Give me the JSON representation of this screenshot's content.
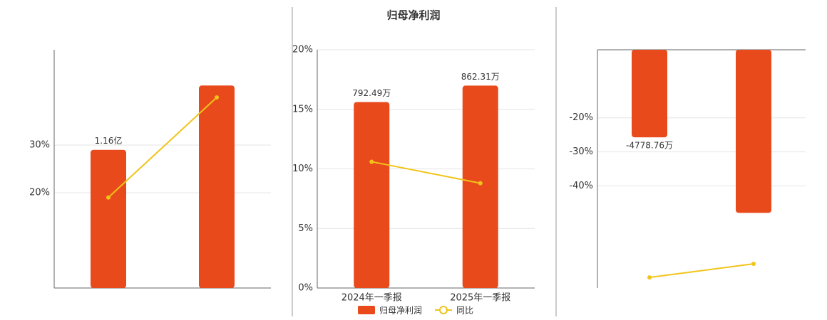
{
  "chart_data": [
    {
      "type": "bar",
      "categories": [
        null,
        null
      ],
      "ylim": [
        0,
        2
      ],
      "y2lim": [
        0,
        50
      ],
      "y2ticks": [
        {
          "value": 20,
          "label": "20%"
        },
        {
          "value": 30,
          "label": "30%"
        }
      ],
      "grid": true,
      "series": [
        {
          "color": "#e84a1c",
          "values": [
            1.16,
            1.7
          ],
          "value_labels": [
            "1.16亿",
            null
          ]
        },
        {
          "type": "line",
          "axis": "y2",
          "color": "#f0c419",
          "values": [
            19,
            40
          ]
        }
      ]
    },
    {
      "type": "bar",
      "title": "归母净利润",
      "categories": [
        "2024年一季报",
        "2025年一季报"
      ],
      "ylim": [
        0,
        1015
      ],
      "y2lim": [
        0,
        20
      ],
      "y2ticks": [
        {
          "value": 0,
          "label": "0%"
        },
        {
          "value": 5,
          "label": "5%"
        },
        {
          "value": 10,
          "label": "10%"
        },
        {
          "value": 15,
          "label": "15%"
        },
        {
          "value": 20,
          "label": "20%"
        }
      ],
      "grid": true,
      "legend": "bottom",
      "series": [
        {
          "name": "归母净利润",
          "color": "#e84a1c",
          "values": [
            792.49,
            862.31
          ],
          "value_labels": [
            "792.49万",
            "862.31万"
          ]
        },
        {
          "name": "同比",
          "type": "line",
          "axis": "y2",
          "color": "#f0c419",
          "values": [
            10.6,
            8.8
          ]
        }
      ]
    },
    {
      "type": "bar",
      "categories": [
        null,
        null
      ],
      "ylim": [
        -13000,
        0
      ],
      "y2lim": [
        -70,
        0
      ],
      "y2ticks": [
        {
          "value": -20,
          "label": "-20%"
        },
        {
          "value": -30,
          "label": "-30%"
        },
        {
          "value": -40,
          "label": "-40%"
        }
      ],
      "grid": true,
      "series": [
        {
          "color": "#e84a1c",
          "values": [
            -4778.76,
            -8900
          ],
          "value_labels": [
            "-4778.76万",
            null
          ]
        },
        {
          "type": "line",
          "axis": "y2",
          "color": "#f0c419",
          "values": [
            -66.9,
            -62.9
          ]
        }
      ]
    }
  ]
}
